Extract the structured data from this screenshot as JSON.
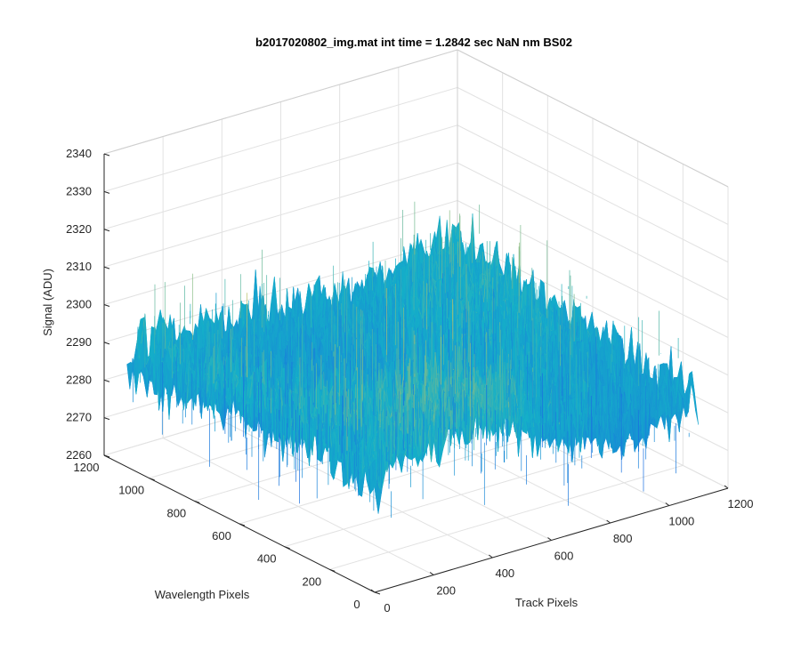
{
  "chart_data": {
    "type": "surface",
    "title": "b2017020802_img.mat int time = 1.2842 sec  NaN nm BS02",
    "xlabel": "Track Pixels",
    "ylabel": "Wavelength Pixels",
    "zlabel": "Signal (ADU)",
    "xlim": [
      0,
      1200
    ],
    "ylim": [
      0,
      1200
    ],
    "zlim": [
      2260,
      2340
    ],
    "x_ticks": [
      "0",
      "200",
      "400",
      "600",
      "800",
      "1000",
      "1200"
    ],
    "y_ticks": [
      "0",
      "200",
      "400",
      "600",
      "800",
      "1000",
      "1200"
    ],
    "z_ticks": [
      "2260",
      "2270",
      "2280",
      "2290",
      "2300",
      "2310",
      "2320",
      "2330",
      "2340"
    ],
    "x_range": [
      1,
      1100
    ],
    "y_range": [
      1,
      1100
    ],
    "surface_mean": 2290,
    "surface_min": 2262,
    "surface_max": 2328,
    "grid": true,
    "colormap": "parula",
    "colors": {
      "low": "#1a70e0",
      "mid": "#15b0c8",
      "high": "#e5c550",
      "axis": "#262626",
      "grid": "#e2e2e2"
    }
  }
}
